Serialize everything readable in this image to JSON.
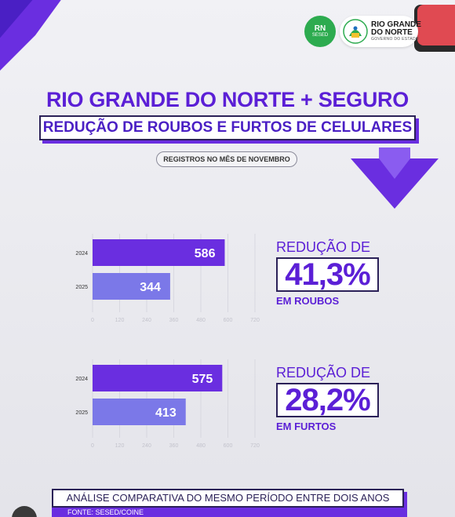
{
  "header": {
    "title": "RIO GRANDE DO NORTE + SEGURO",
    "subtitle": "REDUÇÃO DE ROUBOS E FURTOS DE CELULARES",
    "period": "REGISTROS NO MÊS DE NOVEMBRO"
  },
  "logos": {
    "rn_text": "RN",
    "rn_sub": "SESED",
    "gov_line1": "RIO GRANDE",
    "gov_line2": "DO NORTE",
    "gov_line3": "GOVERNO DO ESTADO"
  },
  "colors": {
    "primary": "#5b1fd6",
    "bar_2024": "#6a2ee0",
    "bar_2025": "#7b78e8",
    "dark": "#2b2158",
    "green": "#2dab4f"
  },
  "chart_data": [
    {
      "type": "bar",
      "orientation": "horizontal",
      "categories": [
        "2024",
        "2025"
      ],
      "values": [
        586,
        344
      ],
      "xlim": [
        0,
        720
      ],
      "xticks": [
        0,
        120,
        240,
        360,
        480,
        600,
        720
      ],
      "grid": true,
      "reduction_label": "REDUÇÃO DE",
      "reduction_value": "41,3%",
      "reduction_caption": "EM ROUBOS"
    },
    {
      "type": "bar",
      "orientation": "horizontal",
      "categories": [
        "2024",
        "2025"
      ],
      "values": [
        575,
        413
      ],
      "xlim": [
        0,
        720
      ],
      "xticks": [
        0,
        120,
        240,
        360,
        480,
        600,
        720
      ],
      "grid": true,
      "reduction_label": "REDUÇÃO DE",
      "reduction_value": "28,2%",
      "reduction_caption": "EM FURTOS"
    }
  ],
  "footer": {
    "caption": "ANÁLISE COMPARATIVA DO MESMO PERÍODO ENTRE DOIS ANOS",
    "source": "FONTE: SESED/COINE"
  }
}
